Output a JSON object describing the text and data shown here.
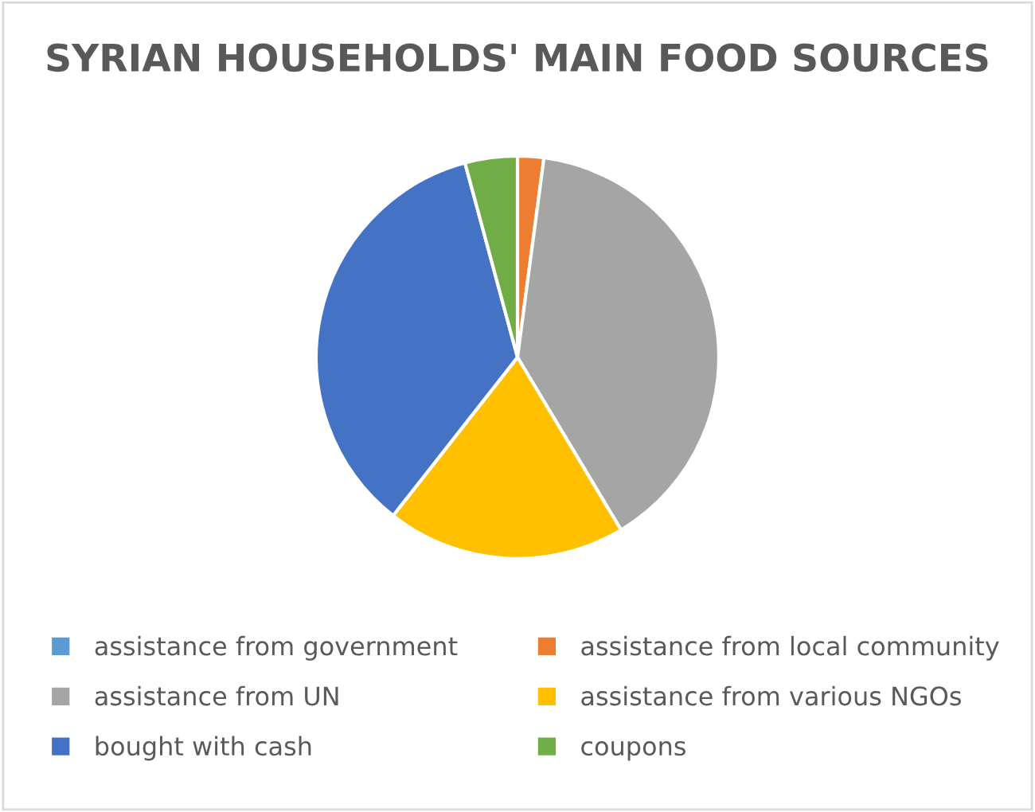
{
  "chart_data": {
    "type": "pie",
    "title": "SYRIAN HOUSEHOLDS' MAIN FOOD SOURCES",
    "categories": [
      "assistance from government",
      "assistance from local community",
      "assistance from UN",
      "assistance from various NGOs",
      "bought with cash",
      "coupons"
    ],
    "values": [
      0,
      2.1,
      39.3,
      19.2,
      35.2,
      4.2
    ],
    "colors": [
      "#5b9bd5",
      "#ed7d31",
      "#a5a5a5",
      "#ffc000",
      "#4472c4",
      "#70ad47"
    ],
    "legend": "bottom"
  }
}
